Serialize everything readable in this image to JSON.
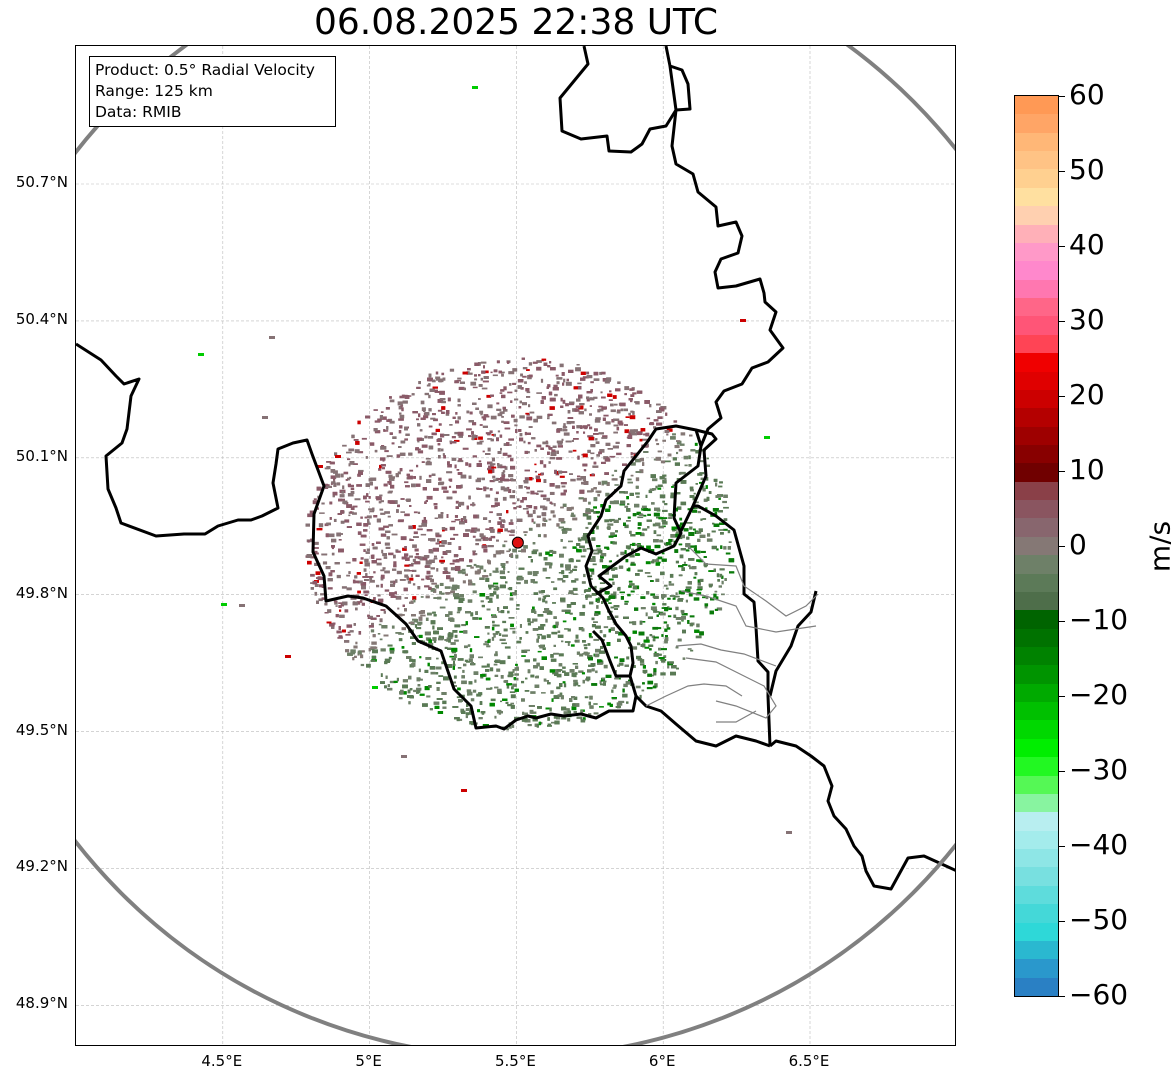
{
  "title": "06.08.2025 22:38 UTC",
  "info_box": {
    "line1": "Product: 0.5° Radial Velocity",
    "line2": "Range: 125 km",
    "line3": "Data: RMIB"
  },
  "axes": {
    "lat_labels": [
      "50.7°N",
      "50.4°N",
      "50.1°N",
      "49.8°N",
      "49.5°N",
      "49.2°N",
      "48.9°N"
    ],
    "lon_labels": [
      "4.5°E",
      "5°E",
      "5.5°E",
      "6°E",
      "6.5°E"
    ],
    "lat_values": [
      50.7,
      50.4,
      50.1,
      49.8,
      49.5,
      49.2,
      48.9
    ],
    "lon_values": [
      4.5,
      5.0,
      5.5,
      6.0,
      6.5
    ],
    "lon_range": [
      4.0,
      7.0
    ],
    "lat_range": [
      48.8,
      50.99
    ],
    "grid": true
  },
  "radar_site": {
    "lon": 5.505,
    "lat": 49.914,
    "marker_color": "#dd1111"
  },
  "range_ring_km": 125,
  "colorbar": {
    "unit": "m/s",
    "min": -60,
    "max": 60,
    "tick_labels": [
      "60",
      "50",
      "40",
      "30",
      "20",
      "10",
      "0",
      "−10",
      "−20",
      "−30",
      "−40",
      "−50",
      "−60"
    ],
    "tick_values": [
      60,
      50,
      40,
      30,
      20,
      10,
      0,
      -10,
      -20,
      -30,
      -40,
      -50,
      -60
    ],
    "colors_top_to_bottom": [
      "#ff9955",
      "#ffa566",
      "#ffb777",
      "#ffc385",
      "#ffd090",
      "#ffe0a0",
      "#ffd0b0",
      "#ffb0b8",
      "#ff99c8",
      "#ff88cc",
      "#ff77b0",
      "#ff6688",
      "#ff5577",
      "#ff4455",
      "#f00000",
      "#e00000",
      "#cc0000",
      "#b40000",
      "#9e0000",
      "#880000",
      "#700000",
      "#8a4048",
      "#8a5560",
      "#88666e",
      "#857875",
      "#6e8068",
      "#5c7a58",
      "#4e6e4a",
      "#006400",
      "#007200",
      "#008200",
      "#009400",
      "#00aa00",
      "#00c000",
      "#00d800",
      "#00ee00",
      "#22f822",
      "#55f855",
      "#88f4a0",
      "#b8eef0",
      "#a4ecec",
      "#8ee6e6",
      "#78e0e0",
      "#5edcdc",
      "#44d8d8",
      "#2ed8d8",
      "#2ab8d0",
      "#2a98cc",
      "#2a80c4"
    ]
  },
  "map_colors": {
    "frame": "#000000",
    "grid": "#bbbbbb",
    "range_ring": "#808080",
    "country_border": "#000000",
    "province_border": "#808080",
    "inbound": "#5a7a55",
    "outbound": "#8a5a68",
    "strong_inbound": "#008800",
    "strong_outbound": "#cc0000"
  }
}
